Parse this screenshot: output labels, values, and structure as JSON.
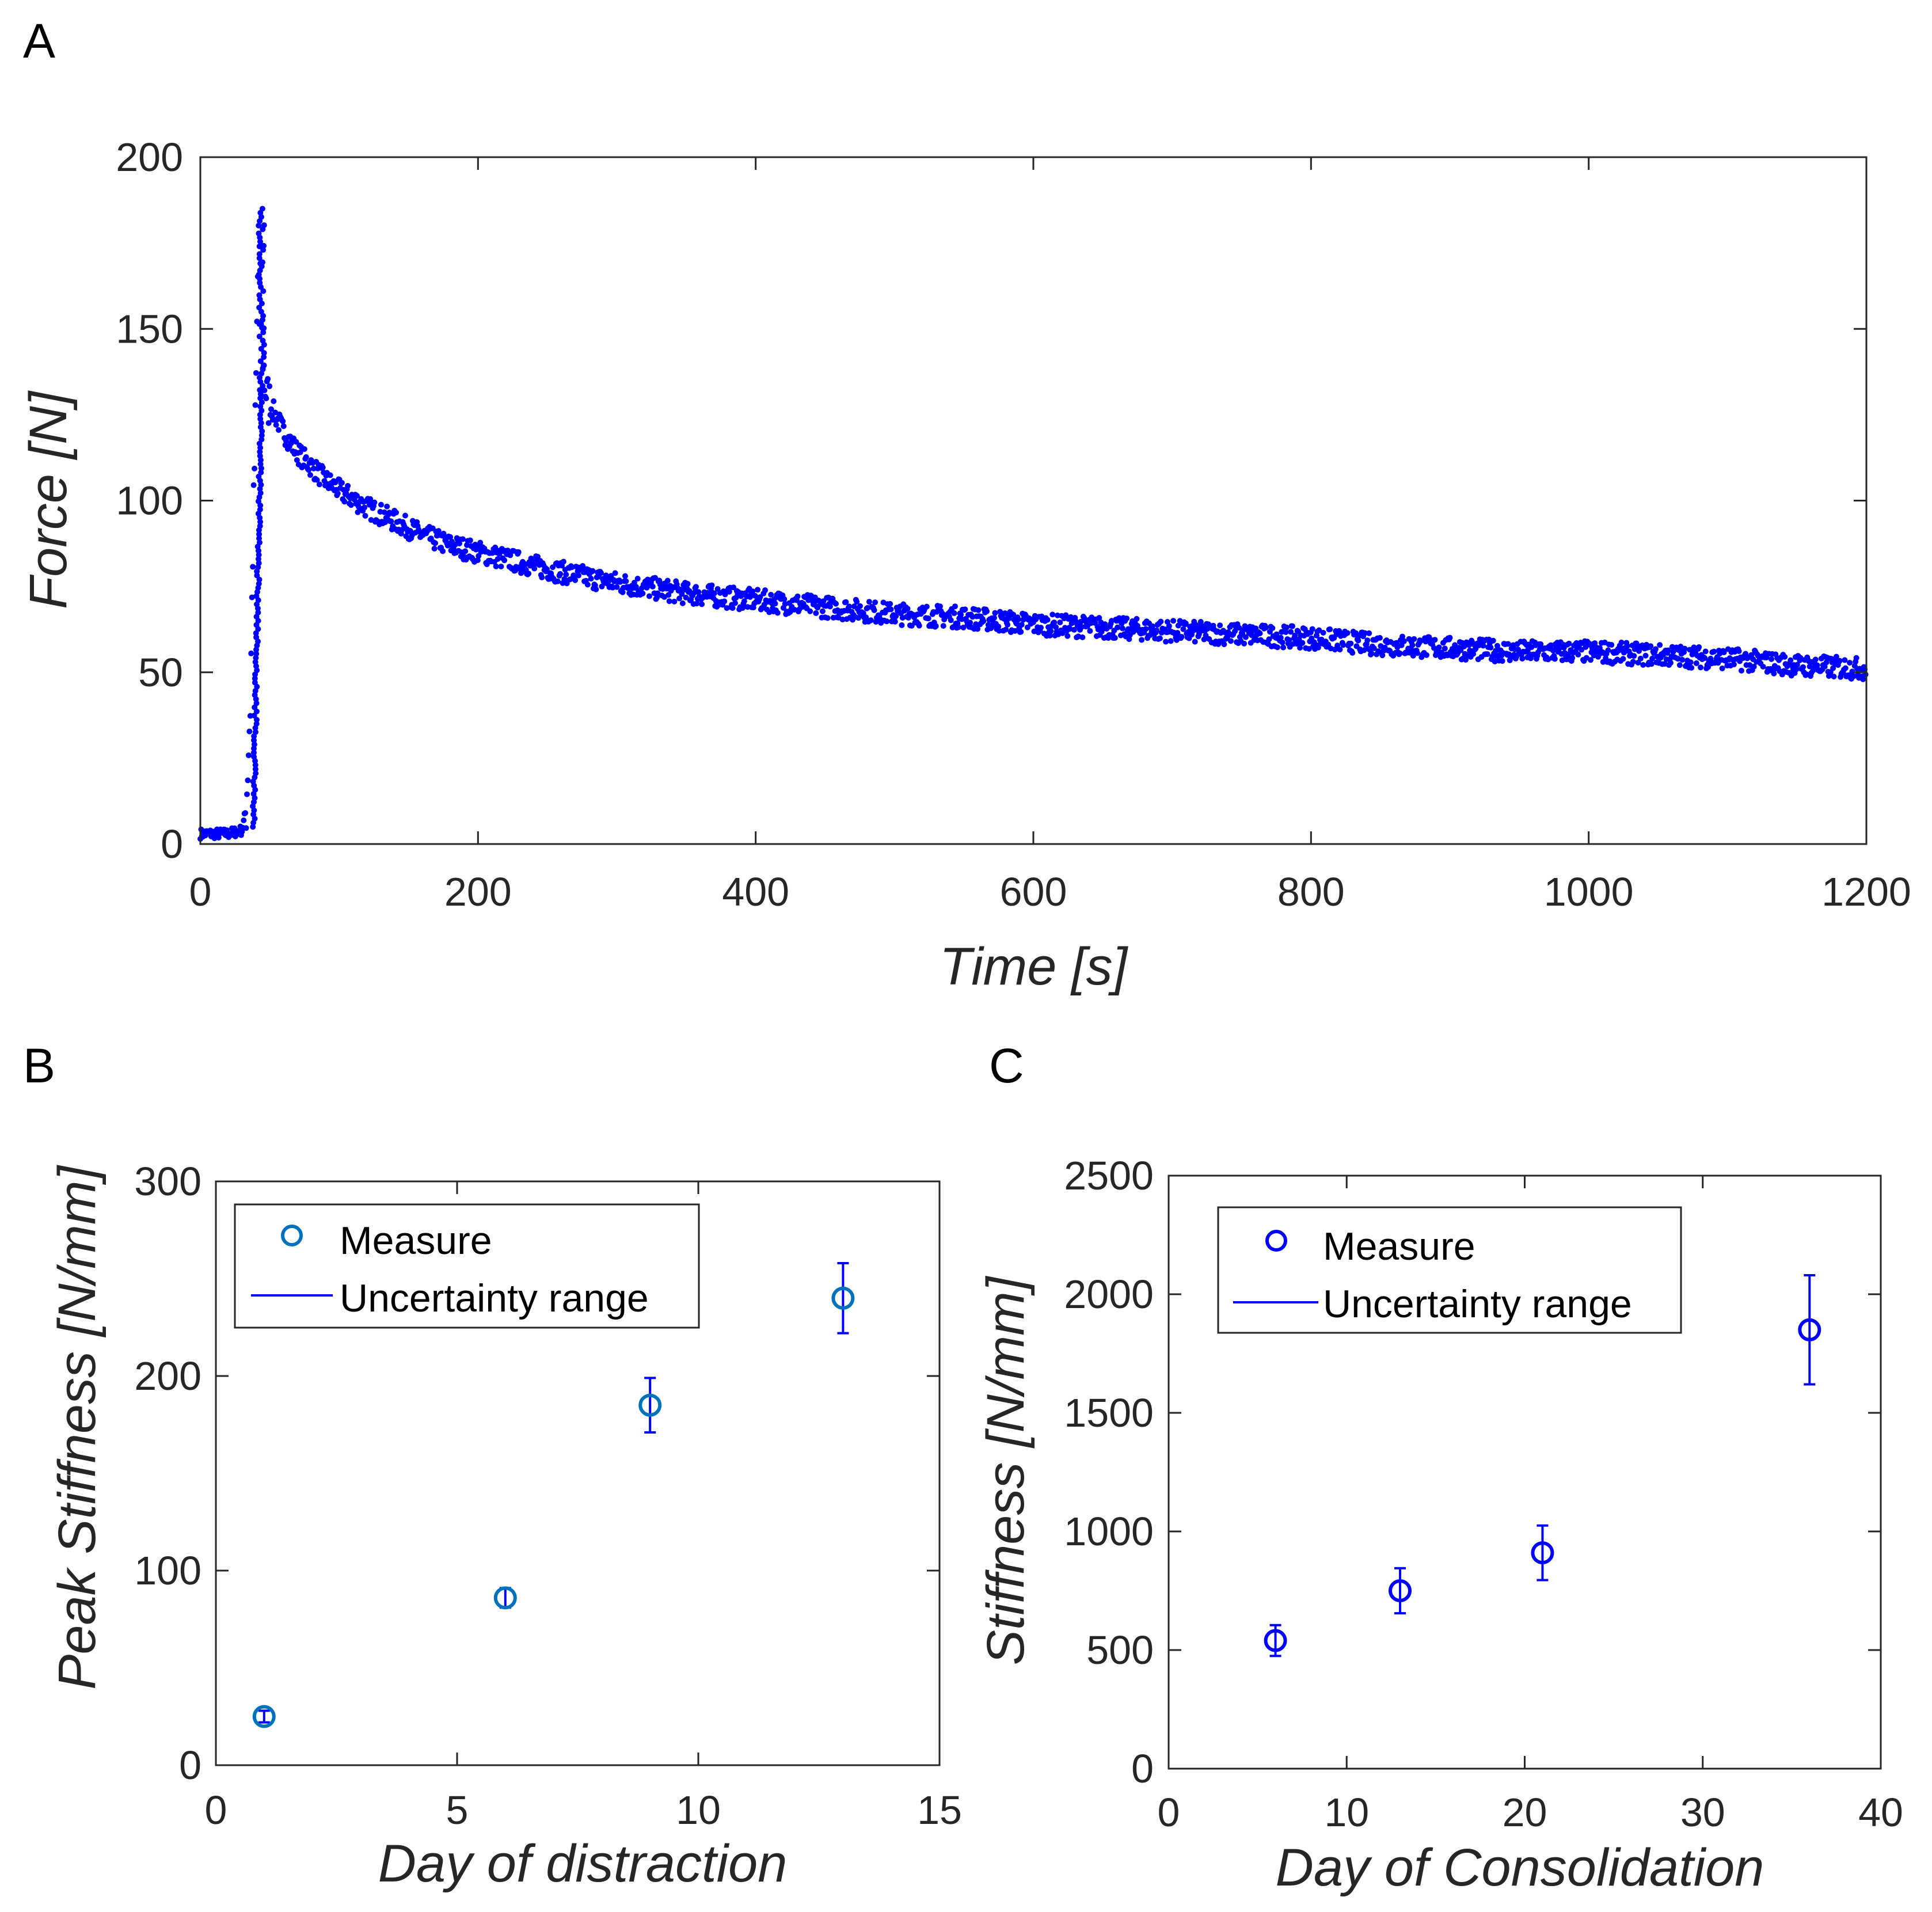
{
  "chart_data": [
    {
      "panel_label": "A",
      "type": "scatter",
      "xlabel": "Time [s]",
      "ylabel": "Force [N]",
      "xlim": [
        0,
        1200
      ],
      "ylim": [
        0,
        200
      ],
      "xticks": [
        0,
        200,
        400,
        600,
        800,
        1000,
        1200
      ],
      "yticks": [
        0,
        50,
        100,
        150,
        200
      ],
      "color": "#0000FF",
      "series": [
        {
          "name": "Force",
          "x": [
            0,
            10,
            20,
            30,
            33,
            36,
            38,
            40,
            42,
            44,
            46,
            48,
            50,
            55,
            60,
            70,
            80,
            90,
            100,
            120,
            140,
            160,
            180,
            200,
            250,
            300,
            350,
            400,
            450,
            500,
            550,
            600,
            650,
            700,
            750,
            800,
            850,
            900,
            950,
            1000,
            1050,
            1100,
            1150,
            1200
          ],
          "y": [
            3,
            3,
            3,
            4,
            10,
            40,
            90,
            130,
            180,
            150,
            135,
            130,
            128,
            124,
            120,
            114,
            110,
            106,
            103,
            98,
            94,
            90,
            87,
            85,
            80,
            76,
            73,
            71,
            69,
            67,
            66,
            64,
            63,
            62,
            61,
            60,
            58,
            57,
            56,
            56,
            55,
            54,
            52,
            51
          ]
        }
      ]
    },
    {
      "panel_label": "B",
      "type": "scatter",
      "xlabel": "Day of distraction",
      "ylabel": "Peak Stiffness [N/mm]",
      "xlim": [
        0,
        15
      ],
      "ylim": [
        0,
        300
      ],
      "xticks": [
        0,
        5,
        10,
        15
      ],
      "yticks": [
        0,
        100,
        200,
        300
      ],
      "marker_color": "#0072BD",
      "error_color": "#0000FF",
      "legend": [
        "Measure",
        "Uncertainty range"
      ],
      "points": [
        {
          "x": 1,
          "y": 25,
          "err": 3
        },
        {
          "x": 6,
          "y": 86,
          "err": 5
        },
        {
          "x": 9,
          "y": 185,
          "err": 14
        },
        {
          "x": 13,
          "y": 240,
          "err": 18
        }
      ]
    },
    {
      "panel_label": "C",
      "type": "scatter",
      "xlabel": "Day of Consolidation",
      "ylabel": "Stiffness [N/mm]",
      "xlim": [
        0,
        40
      ],
      "ylim": [
        0,
        2500
      ],
      "xticks": [
        0,
        10,
        20,
        30,
        40
      ],
      "yticks": [
        0,
        500,
        1000,
        1500,
        2000,
        2500
      ],
      "marker_color": "#0000FF",
      "error_color": "#0000FF",
      "legend": [
        "Measure",
        "Uncertainty range"
      ],
      "points": [
        {
          "x": 6,
          "y": 540,
          "err": 65
        },
        {
          "x": 13,
          "y": 750,
          "err": 95
        },
        {
          "x": 21,
          "y": 910,
          "err": 115
        },
        {
          "x": 36,
          "y": 1850,
          "err": 230
        }
      ]
    }
  ]
}
